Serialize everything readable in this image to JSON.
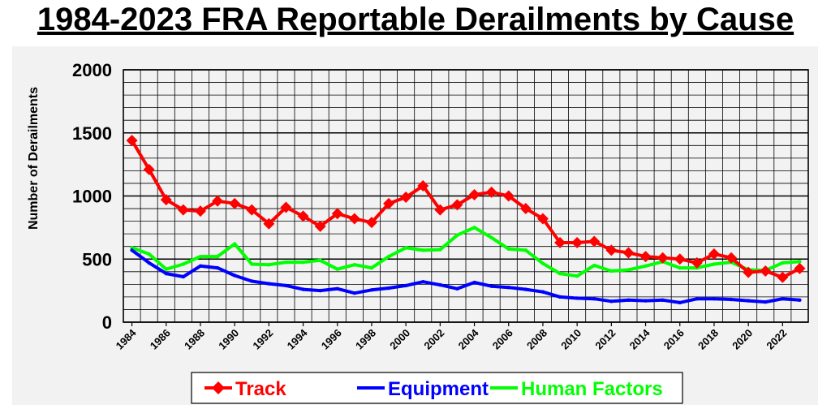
{
  "chart_data": {
    "type": "line",
    "title": "1984-2023 FRA Reportable Derailments by Cause",
    "xlabel": "",
    "ylabel": "Number of Derailments",
    "ylim": [
      0,
      2000
    ],
    "yticks": [
      0,
      500,
      1000,
      1500,
      2000
    ],
    "x": [
      1984,
      1985,
      1986,
      1987,
      1988,
      1989,
      1990,
      1991,
      1992,
      1993,
      1994,
      1995,
      1996,
      1997,
      1998,
      1999,
      2000,
      2001,
      2002,
      2003,
      2004,
      2005,
      2006,
      2007,
      2008,
      2009,
      2010,
      2011,
      2012,
      2013,
      2014,
      2015,
      2016,
      2017,
      2018,
      2019,
      2020,
      2021,
      2022,
      2023
    ],
    "xticks": [
      1984,
      1986,
      1988,
      1990,
      1992,
      1994,
      1996,
      1998,
      2000,
      2002,
      2004,
      2006,
      2008,
      2010,
      2012,
      2014,
      2016,
      2018,
      2020,
      2022
    ],
    "grid": true,
    "legend": "bottom",
    "series": [
      {
        "name": "Track",
        "color": "#ff0000",
        "marker": "diamond",
        "values": [
          1440,
          1210,
          970,
          890,
          880,
          960,
          940,
          890,
          780,
          910,
          840,
          760,
          860,
          820,
          790,
          940,
          990,
          1080,
          890,
          930,
          1010,
          1030,
          1000,
          900,
          820,
          630,
          630,
          640,
          570,
          550,
          520,
          510,
          500,
          470,
          540,
          510,
          395,
          405,
          355,
          425
        ]
      },
      {
        "name": "Equipment",
        "color": "#0000ff",
        "marker": "none",
        "values": [
          570,
          470,
          385,
          360,
          445,
          430,
          370,
          325,
          305,
          290,
          260,
          250,
          265,
          230,
          255,
          270,
          290,
          320,
          295,
          265,
          315,
          285,
          275,
          260,
          240,
          200,
          190,
          185,
          165,
          175,
          170,
          175,
          155,
          185,
          185,
          180,
          170,
          160,
          185,
          175
        ]
      },
      {
        "name": "Human Factors",
        "color": "#00ff00",
        "marker": "none",
        "values": [
          590,
          540,
          420,
          460,
          520,
          520,
          620,
          460,
          455,
          475,
          475,
          490,
          420,
          455,
          430,
          520,
          590,
          570,
          575,
          690,
          750,
          670,
          580,
          570,
          465,
          385,
          365,
          450,
          405,
          415,
          445,
          480,
          430,
          430,
          460,
          475,
          415,
          410,
          470,
          480
        ]
      }
    ]
  }
}
